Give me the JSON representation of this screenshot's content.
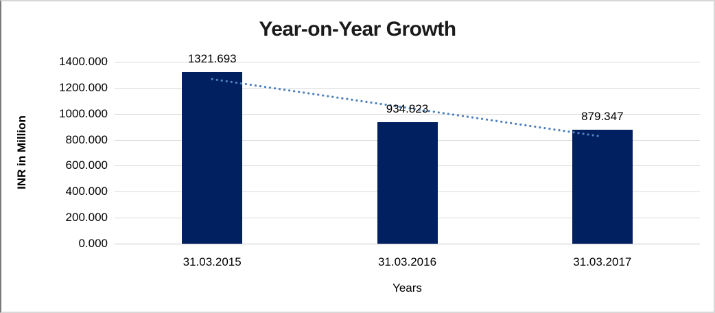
{
  "chart_data": {
    "type": "bar",
    "title": "Year-on-Year Growth",
    "xlabel": "Years",
    "ylabel": "INR in Million",
    "categories": [
      "31.03.2015",
      "31.03.2016",
      "31.03.2017"
    ],
    "values": [
      1321.693,
      934.823,
      879.347
    ],
    "value_labels": [
      "1321.693",
      "934.823",
      "879.347"
    ],
    "ylim": [
      0,
      1400
    ],
    "ytick_step": 200,
    "ytick_labels": [
      "0.000",
      "200.000",
      "400.000",
      "600.000",
      "800.000",
      "1000.000",
      "1200.000",
      "1400.000"
    ],
    "grid": true,
    "legend": "none",
    "colors": {
      "bar": "#002060",
      "trendline": "#4e81bd",
      "gridline": "#d9d9d9",
      "title_text": "#1a1a1a",
      "label_text": "#000000"
    },
    "trendline": {
      "type": "linear",
      "style": "dotted"
    }
  }
}
